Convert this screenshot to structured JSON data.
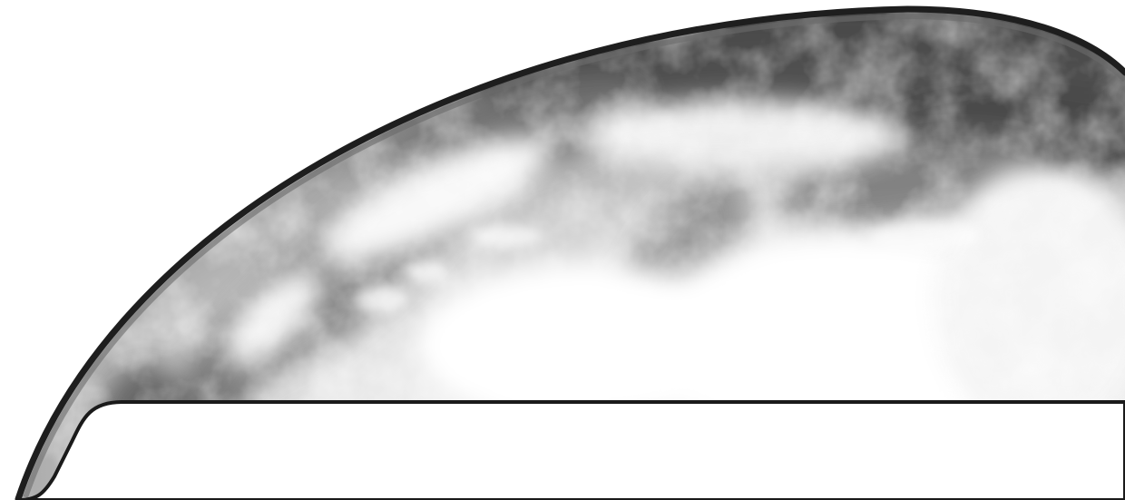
{
  "scene": {
    "subject": "earth-globe-grayscale",
    "colors": {
      "background": "#ffffff",
      "outline": "#1a1a1a",
      "cloud_highlight": "#f7f7f7",
      "land_shadow": "#5a5a5a",
      "limb_dark": "#2a2a2a"
    }
  }
}
